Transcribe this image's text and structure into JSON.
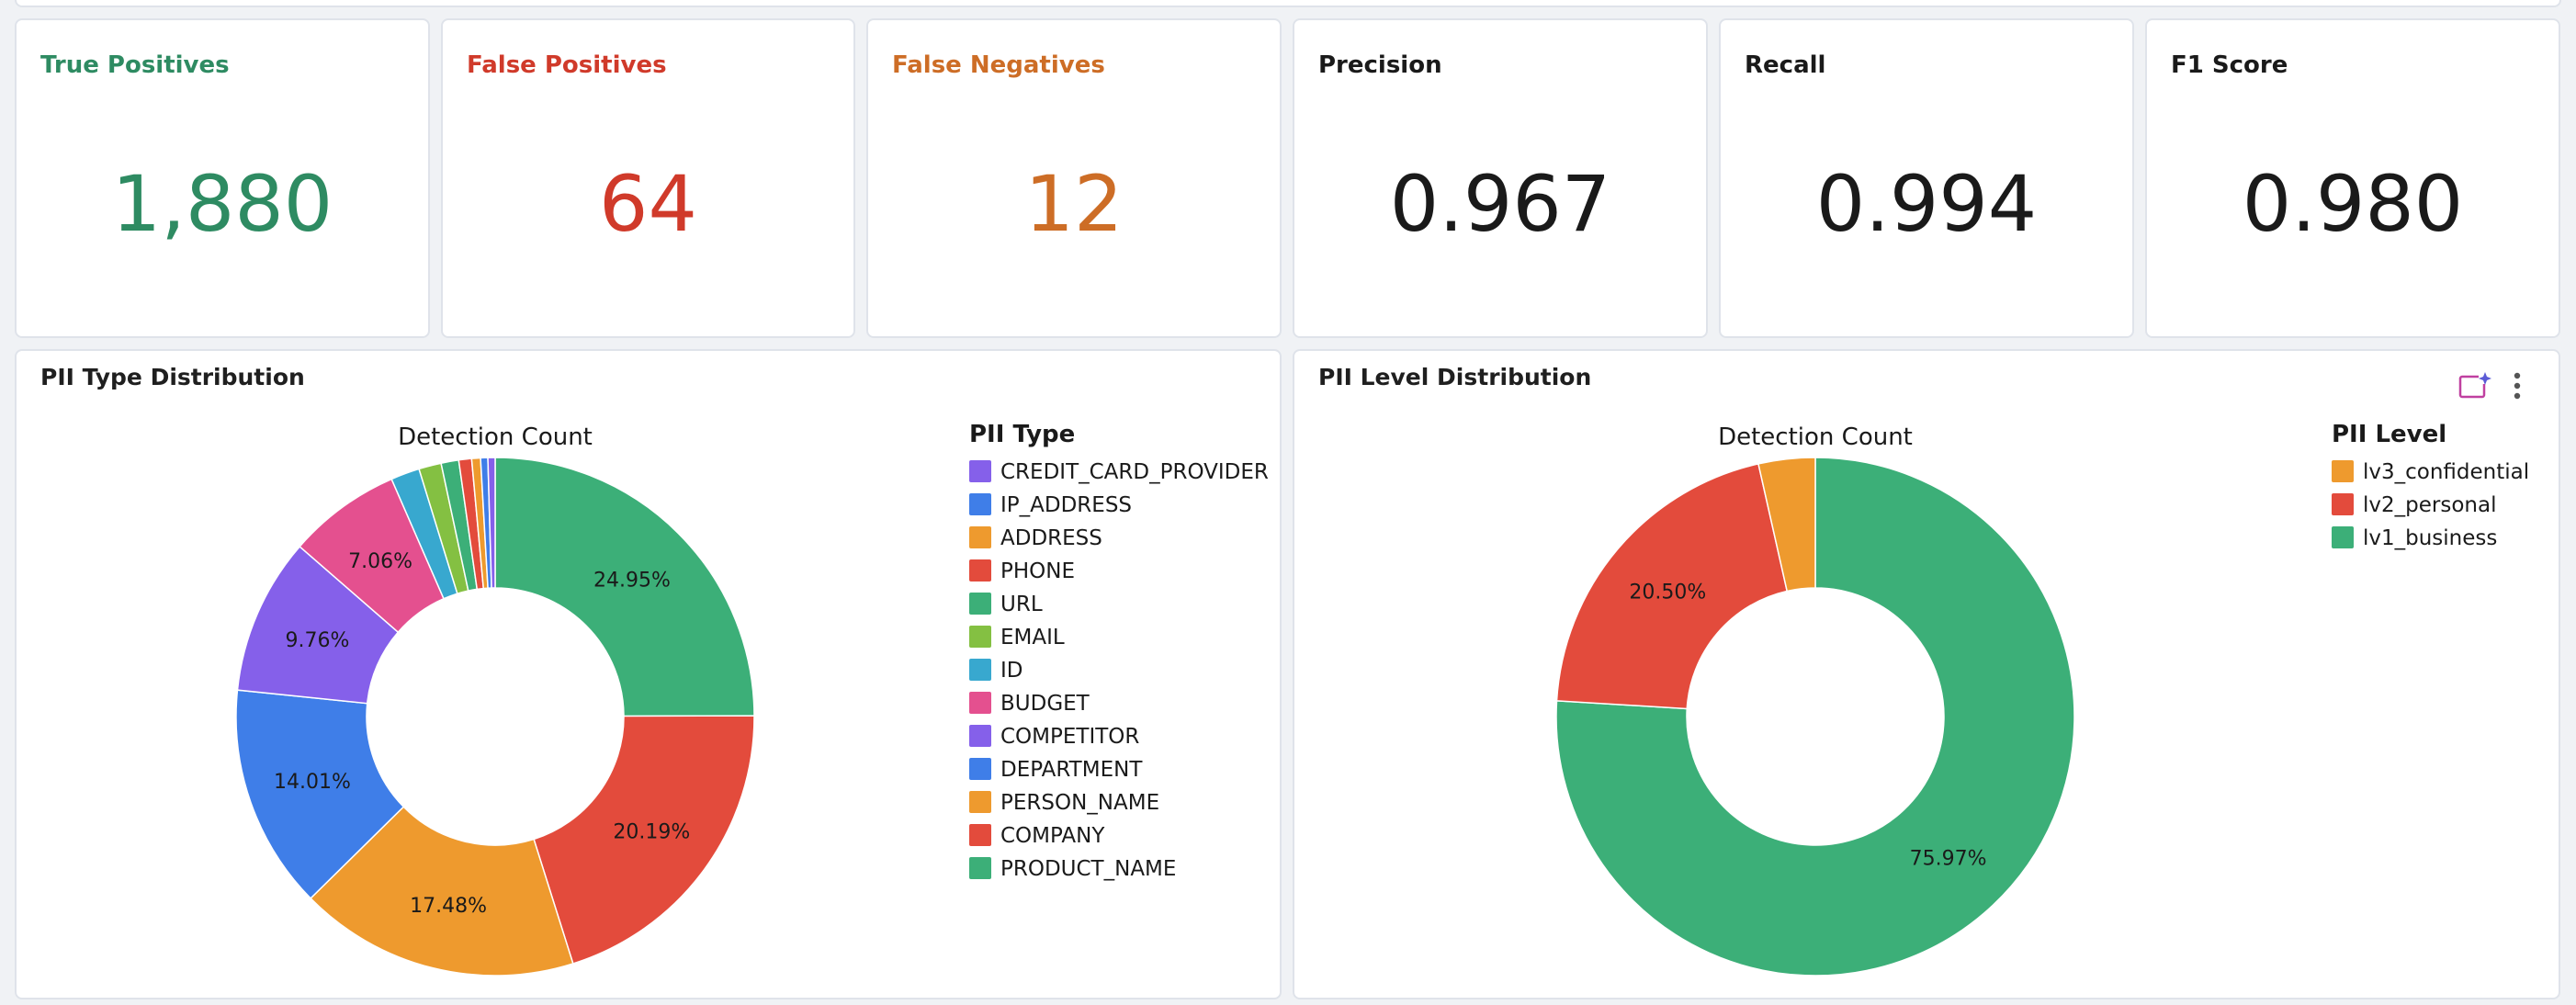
{
  "kpis": [
    {
      "title": "True Positives",
      "value": "1,880",
      "color": "#2e8b62"
    },
    {
      "title": "False Positives",
      "value": "64",
      "color": "#d03a2a"
    },
    {
      "title": "False Negatives",
      "value": "12",
      "color": "#cd6d26"
    },
    {
      "title": "Precision",
      "value": "0.967",
      "color": "#1a1a1a"
    },
    {
      "title": "Recall",
      "value": "0.994",
      "color": "#1a1a1a"
    },
    {
      "title": "F1 Score",
      "value": "0.980",
      "color": "#1a1a1a"
    }
  ],
  "panels": {
    "type": {
      "title": "PII Type Distribution"
    },
    "level": {
      "title": "PII Level Distribution",
      "icons": [
        "sparkle-chart-icon",
        "more-vertical-icon"
      ]
    }
  },
  "chart_data": [
    {
      "type": "pie",
      "title": "Detection Count",
      "legend_title": "PII Type",
      "legend_position": "top-right",
      "donut": true,
      "slices": [
        {
          "label": "PRODUCT_NAME",
          "value": 24.95,
          "color": "#3caf78",
          "data_label": "24.95%"
        },
        {
          "label": "COMPANY",
          "value": 20.19,
          "color": "#e34b3c",
          "data_label": "20.19%"
        },
        {
          "label": "PERSON_NAME",
          "value": 17.48,
          "color": "#ee9a2e",
          "data_label": "17.48%"
        },
        {
          "label": "DEPARTMENT",
          "value": 14.01,
          "color": "#3f7ee8",
          "data_label": "14.01%"
        },
        {
          "label": "COMPETITOR",
          "value": 9.76,
          "color": "#8560ea",
          "data_label": "9.76%"
        },
        {
          "label": "BUDGET",
          "value": 7.06,
          "color": "#e4508f",
          "data_label": "7.06%"
        },
        {
          "label": "ID",
          "value": 1.8,
          "color": "#38a8cf",
          "data_label": ""
        },
        {
          "label": "EMAIL",
          "value": 1.4,
          "color": "#84c042",
          "data_label": ""
        },
        {
          "label": "URL",
          "value": 1.1,
          "color": "#3caf78",
          "data_label": ""
        },
        {
          "label": "PHONE",
          "value": 0.8,
          "color": "#e34b3c",
          "data_label": ""
        },
        {
          "label": "ADDRESS",
          "value": 0.55,
          "color": "#ee9a2e",
          "data_label": ""
        },
        {
          "label": "IP_ADDRESS",
          "value": 0.45,
          "color": "#3f7ee8",
          "data_label": ""
        },
        {
          "label": "CREDIT_CARD_PROVIDER",
          "value": 0.45,
          "color": "#8560ea",
          "data_label": ""
        }
      ],
      "legend": [
        "CREDIT_CARD_PROVIDER",
        "IP_ADDRESS",
        "ADDRESS",
        "PHONE",
        "URL",
        "EMAIL",
        "ID",
        "BUDGET",
        "COMPETITOR",
        "DEPARTMENT",
        "PERSON_NAME",
        "COMPANY",
        "PRODUCT_NAME"
      ]
    },
    {
      "type": "pie",
      "title": "Detection Count",
      "legend_title": "PII Level",
      "legend_position": "top-right",
      "donut": true,
      "slices": [
        {
          "label": "lv1_business",
          "value": 75.97,
          "color": "#3caf78",
          "data_label": "75.97%"
        },
        {
          "label": "lv2_personal",
          "value": 20.5,
          "color": "#e34b3c",
          "data_label": "20.50%"
        },
        {
          "label": "lv3_confidential",
          "value": 3.53,
          "color": "#ee9a2e",
          "data_label": ""
        }
      ],
      "legend": [
        "lv3_confidential",
        "lv2_personal",
        "lv1_business"
      ]
    }
  ]
}
